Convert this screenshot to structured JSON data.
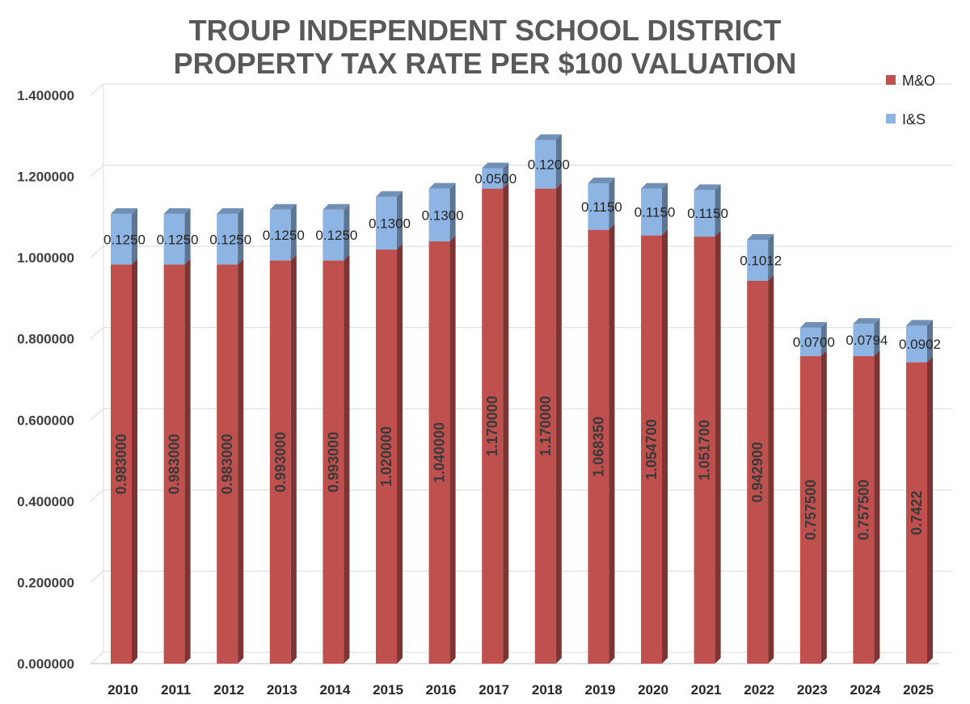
{
  "chart_data": {
    "type": "bar",
    "stacked": true,
    "title_lines": [
      "TROUP INDEPENDENT SCHOOL DISTRICT",
      "PROPERTY TAX RATE PER $100 VALUATION"
    ],
    "categories": [
      "2010",
      "2011",
      "2012",
      "2013",
      "2014",
      "2015",
      "2016",
      "2017",
      "2018",
      "2019",
      "2020",
      "2021",
      "2022",
      "2023",
      "2024",
      "2025"
    ],
    "series": [
      {
        "name": "M&O",
        "color": "#c0504d",
        "values": [
          0.983,
          0.983,
          0.983,
          0.993,
          0.993,
          1.02,
          1.04,
          1.17,
          1.17,
          1.06835,
          1.0547,
          1.0517,
          0.9429,
          0.7575,
          0.7575,
          0.7422
        ],
        "labels": [
          "0.983000",
          "0.983000",
          "0.983000",
          "0.993000",
          "0.993000",
          "1.020000",
          "1.040000",
          "1.170000",
          "1.170000",
          "1.068350",
          "1.054700",
          "1.051700",
          "0.942900",
          "0.757500",
          "0.757500",
          "0.7422"
        ]
      },
      {
        "name": "I&S",
        "color": "#8db4e2",
        "values": [
          0.125,
          0.125,
          0.125,
          0.125,
          0.125,
          0.13,
          0.13,
          0.05,
          0.12,
          0.115,
          0.115,
          0.115,
          0.1012,
          0.07,
          0.0794,
          0.0902
        ],
        "labels": [
          "0.1250",
          "0.1250",
          "0.1250",
          "0.1250",
          "0.1250",
          "0.1300",
          "0.1300",
          "0.0500",
          "0.1200",
          "0.1150",
          "0.1150",
          "0.1150",
          "0.1012",
          "0.0700",
          "0.0794",
          "0.0902"
        ]
      }
    ],
    "ylim": [
      0,
      1.4
    ],
    "ytick_step": 0.2,
    "ytick_labels": [
      "0.000000",
      "0.200000",
      "0.400000",
      "0.600000",
      "0.800000",
      "1.000000",
      "1.200000",
      "1.400000"
    ],
    "grid": true,
    "legend_position": "top-right"
  }
}
